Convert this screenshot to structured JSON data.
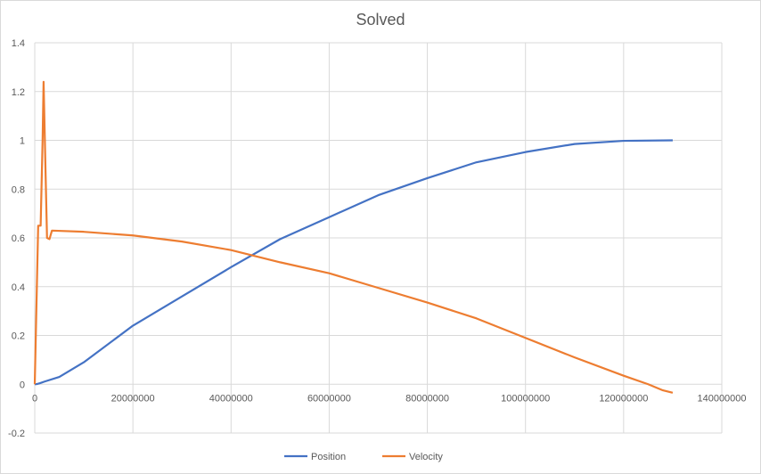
{
  "chart_data": {
    "type": "line",
    "title": "Solved",
    "xlabel": "",
    "ylabel": "",
    "xlim": [
      0,
      140000000
    ],
    "ylim": [
      -0.2,
      1.4
    ],
    "x_ticks": [
      0,
      20000000,
      40000000,
      60000000,
      80000000,
      100000000,
      120000000,
      140000000
    ],
    "x_tick_labels": [
      "0",
      "20000000",
      "40000000",
      "60000000",
      "80000000",
      "100000000",
      "120000000",
      "140000000"
    ],
    "y_ticks": [
      -0.2,
      0,
      0.2,
      0.4,
      0.6,
      0.8,
      1,
      1.2,
      1.4
    ],
    "y_tick_labels": [
      "-0.2",
      "0",
      "0.2",
      "0.4",
      "0.6",
      "0.8",
      "1",
      "1.2",
      "1.4"
    ],
    "grid": true,
    "legend_position": "bottom",
    "series": [
      {
        "name": "Position",
        "color": "#4472c4",
        "points": [
          [
            0,
            0
          ],
          [
            500000,
            0.001
          ],
          [
            1000000,
            0.004
          ],
          [
            2000000,
            0.011
          ],
          [
            5000000,
            0.03
          ],
          [
            10000000,
            0.09
          ],
          [
            20000000,
            0.24
          ],
          [
            30000000,
            0.36
          ],
          [
            40000000,
            0.48
          ],
          [
            50000000,
            0.595
          ],
          [
            60000000,
            0.685
          ],
          [
            70000000,
            0.775
          ],
          [
            80000000,
            0.845
          ],
          [
            90000000,
            0.91
          ],
          [
            100000000,
            0.952
          ],
          [
            110000000,
            0.985
          ],
          [
            120000000,
            0.998
          ],
          [
            130000000,
            1.0
          ]
        ]
      },
      {
        "name": "Velocity",
        "color": "#ed7d31",
        "points": [
          [
            0,
            0
          ],
          [
            700000,
            0.65
          ],
          [
            1200000,
            0.65
          ],
          [
            1600000,
            1.0
          ],
          [
            1800000,
            1.24
          ],
          [
            2200000,
            0.87
          ],
          [
            2500000,
            0.6
          ],
          [
            3000000,
            0.595
          ],
          [
            3500000,
            0.63
          ],
          [
            10000000,
            0.625
          ],
          [
            20000000,
            0.61
          ],
          [
            30000000,
            0.585
          ],
          [
            40000000,
            0.55
          ],
          [
            50000000,
            0.5
          ],
          [
            60000000,
            0.455
          ],
          [
            70000000,
            0.395
          ],
          [
            80000000,
            0.335
          ],
          [
            90000000,
            0.27
          ],
          [
            100000000,
            0.19
          ],
          [
            110000000,
            0.11
          ],
          [
            120000000,
            0.035
          ],
          [
            125000000,
            0.0
          ],
          [
            128000000,
            -0.025
          ],
          [
            130000000,
            -0.035
          ]
        ]
      }
    ]
  }
}
